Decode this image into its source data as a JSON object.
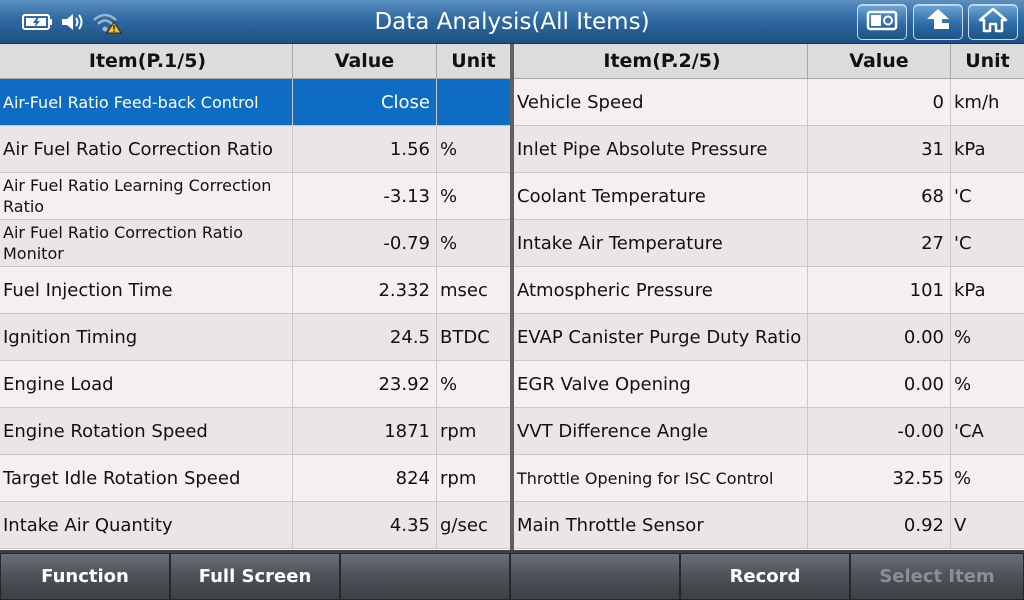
{
  "header": {
    "title": "Data Analysis(All Items)"
  },
  "left_table": {
    "headers": {
      "item": "Item(P.1/5)",
      "value": "Value",
      "unit": "Unit"
    },
    "rows": [
      {
        "item": "Air-Fuel Ratio Feed-back Control",
        "value": "Close",
        "unit": ""
      },
      {
        "item": "Air Fuel Ratio Correction Ratio",
        "value": "1.56",
        "unit": "%"
      },
      {
        "item": "Air Fuel Ratio Learning Correction Ratio",
        "value": "-3.13",
        "unit": "%"
      },
      {
        "item": "Air Fuel Ratio Correction Ratio Monitor",
        "value": "-0.79",
        "unit": "%"
      },
      {
        "item": "Fuel Injection Time",
        "value": "2.332",
        "unit": "msec"
      },
      {
        "item": "Ignition Timing",
        "value": "24.5",
        "unit": "BTDC"
      },
      {
        "item": "Engine Load",
        "value": "23.92",
        "unit": "%"
      },
      {
        "item": "Engine Rotation Speed",
        "value": "1871",
        "unit": "rpm"
      },
      {
        "item": "Target Idle Rotation Speed",
        "value": "824",
        "unit": "rpm"
      },
      {
        "item": "Intake Air Quantity",
        "value": "4.35",
        "unit": "g/sec"
      }
    ]
  },
  "right_table": {
    "headers": {
      "item": "Item(P.2/5)",
      "value": "Value",
      "unit": "Unit"
    },
    "rows": [
      {
        "item": "Vehicle Speed",
        "value": "0",
        "unit": "km/h"
      },
      {
        "item": "Inlet Pipe Absolute Pressure",
        "value": "31",
        "unit": "kPa"
      },
      {
        "item": "Coolant Temperature",
        "value": "68",
        "unit": "'C"
      },
      {
        "item": "Intake Air Temperature",
        "value": "27",
        "unit": "'C"
      },
      {
        "item": "Atmospheric Pressure",
        "value": "101",
        "unit": "kPa"
      },
      {
        "item": "EVAP Canister Purge Duty Ratio",
        "value": "0.00",
        "unit": "%"
      },
      {
        "item": "EGR Valve Opening",
        "value": "0.00",
        "unit": "%"
      },
      {
        "item": "VVT Difference Angle",
        "value": "-0.00",
        "unit": "'CA"
      },
      {
        "item": "Throttle Opening for ISC Control",
        "value": "32.55",
        "unit": "%"
      },
      {
        "item": "Main Throttle Sensor",
        "value": "0.92",
        "unit": "V"
      }
    ]
  },
  "footer": {
    "function_label": "Function",
    "full_screen_label": "Full Screen",
    "empty1_label": "",
    "empty2_label": "",
    "record_label": "Record",
    "select_item_label": "Select Item"
  },
  "colors": {
    "titlebar": "#2f6aa3",
    "selected_row": "#0f6cc4",
    "disabled_text": "#8a8f95"
  },
  "icons": {
    "status": [
      "battery-icon",
      "speaker-icon",
      "wifi-warning-icon"
    ],
    "toolbar": [
      "screenshot-icon",
      "back-icon",
      "home-icon"
    ]
  }
}
